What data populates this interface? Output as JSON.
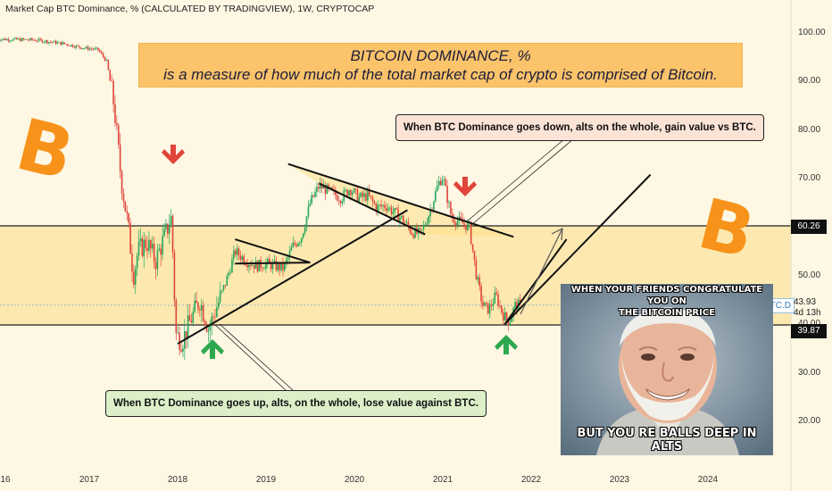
{
  "header": {
    "title": "Market Cap BTC Dominance, % (CALCULATED BY TRADINGVIEW), 1W, CRYPTOCAP"
  },
  "annotations": {
    "title_line1": "BITCOIN DOMINANCE, %",
    "title_line2": "is a measure of how much of the total market cap of crypto is comprised of Bitcoin.",
    "callout_down": "When BTC Dominance goes down, alts on the whole, gain value vs BTC.",
    "callout_up": "When BTC Dominance goes up, alts, on the whole, lose value against BTC.",
    "logo_symbol": "B"
  },
  "meme": {
    "top_text_1": "WHEN YOUR FRIENDS CONGRATULATE YOU ON",
    "top_text_2": "THE BITCOIN PRICE",
    "bottom_text": "BUT YOU RE BALLS DEEP IN ALTS"
  },
  "price_tags": {
    "resistance": "60.26",
    "support": "39.87",
    "symbol": "BTC.D",
    "current_value": "43.93",
    "countdown": "4d 13h"
  },
  "colors": {
    "background": "#fdf7e3",
    "zone": "#fde9b0",
    "up_candle": "#26a65b",
    "down_candle": "#e0453a",
    "bitcoin_orange": "#f7931a",
    "title_box": "#fbc36a",
    "callout_down_bg": "#fbe3d6",
    "callout_up_bg": "#dcefc9"
  },
  "icons": [
    "bitcoin-logo-icon",
    "red-down-arrow-icon",
    "green-up-arrow-icon"
  ],
  "chart_data": {
    "type": "candlestick",
    "title": "Market Cap BTC Dominance, %",
    "interval": "1W",
    "y_ticks": [
      "100.00",
      "90.00",
      "80.00",
      "70.00",
      "60.00",
      "50.00",
      "40.00",
      "30.00",
      "20.00"
    ],
    "y_tick_values": [
      100,
      90,
      80,
      70,
      60,
      50,
      40,
      30,
      20
    ],
    "x_ticks": [
      "16",
      "2017",
      "2018",
      "2019",
      "2020",
      "2021",
      "2022",
      "2023",
      "2024"
    ],
    "x_tick_values": [
      2016.0,
      2017.0,
      2018.0,
      2019.0,
      2020.0,
      2021.0,
      2022.0,
      2023.0,
      2024.0
    ],
    "levels": {
      "resistance": 60.26,
      "support": 39.87,
      "current": 43.93
    },
    "anchors": [
      [
        2015.95,
        98.7
      ],
      [
        2016.4,
        98.5
      ],
      [
        2016.7,
        97.8
      ],
      [
        2016.9,
        97.0
      ],
      [
        2017.1,
        96.5
      ],
      [
        2017.2,
        94.0
      ],
      [
        2017.28,
        85.0
      ],
      [
        2017.36,
        70.0
      ],
      [
        2017.44,
        60.0
      ],
      [
        2017.5,
        50.0
      ],
      [
        2017.55,
        55.0
      ],
      [
        2017.65,
        57.0
      ],
      [
        2017.75,
        53.0
      ],
      [
        2017.85,
        58.0
      ],
      [
        2017.93,
        62.0
      ],
      [
        2017.98,
        38.0
      ],
      [
        2018.05,
        36.5
      ],
      [
        2018.15,
        41.0
      ],
      [
        2018.25,
        45.0
      ],
      [
        2018.35,
        39.0
      ],
      [
        2018.45,
        44.0
      ],
      [
        2018.55,
        49.0
      ],
      [
        2018.65,
        55.0
      ],
      [
        2018.78,
        53.0
      ],
      [
        2018.9,
        52.0
      ],
      [
        2019.0,
        52.5
      ],
      [
        2019.1,
        52.0
      ],
      [
        2019.2,
        51.5
      ],
      [
        2019.3,
        56.0
      ],
      [
        2019.4,
        58.0
      ],
      [
        2019.5,
        65.0
      ],
      [
        2019.6,
        68.5
      ],
      [
        2019.7,
        67.5
      ],
      [
        2019.85,
        66.0
      ],
      [
        2019.95,
        68.0
      ],
      [
        2020.05,
        66.0
      ],
      [
        2020.15,
        66.5
      ],
      [
        2020.25,
        64.0
      ],
      [
        2020.35,
        64.5
      ],
      [
        2020.45,
        63.0
      ],
      [
        2020.55,
        61.5
      ],
      [
        2020.65,
        59.0
      ],
      [
        2020.75,
        58.5
      ],
      [
        2020.85,
        63.0
      ],
      [
        2020.9,
        66.0
      ],
      [
        2020.95,
        69.0
      ],
      [
        2021.0,
        70.5
      ],
      [
        2021.05,
        66.0
      ],
      [
        2021.1,
        62.0
      ],
      [
        2021.2,
        61.0
      ],
      [
        2021.3,
        60.0
      ],
      [
        2021.38,
        50.0
      ],
      [
        2021.45,
        44.0
      ],
      [
        2021.52,
        43.0
      ],
      [
        2021.6,
        46.0
      ],
      [
        2021.68,
        42.0
      ],
      [
        2021.75,
        40.5
      ],
      [
        2021.82,
        44.0
      ],
      [
        2021.88,
        43.93
      ]
    ],
    "trend_lines": [
      {
        "from": [
          2018.0,
          36.0
        ],
        "to": [
          2020.6,
          63.5
        ]
      },
      {
        "from": [
          2021.7,
          40.0
        ],
        "to": [
          2023.35,
          70.8
        ]
      },
      {
        "from": [
          2019.25,
          73.0
        ],
        "to": [
          2021.8,
          58.0
        ]
      },
      {
        "from": [
          2019.6,
          69.0
        ],
        "to": [
          2020.8,
          58.5
        ]
      },
      {
        "from": [
          2018.65,
          57.5
        ],
        "to": [
          2019.5,
          52.7
        ]
      },
      {
        "from": [
          2018.65,
          52.5
        ],
        "to": [
          2019.5,
          52.7
        ]
      },
      {
        "from": [
          2021.7,
          40.0
        ],
        "to": [
          2022.4,
          57.5
        ]
      }
    ],
    "grid": false
  }
}
